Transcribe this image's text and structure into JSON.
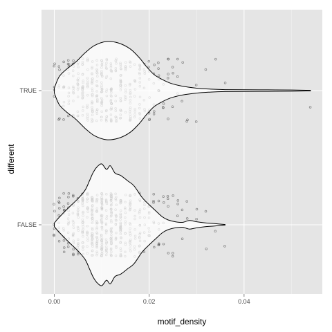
{
  "chart_data": {
    "type": "violin",
    "xlabel": "motif_density",
    "ylabel": "different",
    "xlim": [
      -0.0027,
      0.0565
    ],
    "x_ticks": [
      0.0,
      0.02,
      0.04
    ],
    "x_tick_labels": [
      "0.00",
      "0.02",
      "0.04"
    ],
    "categories": [
      "TRUE",
      "FALSE"
    ],
    "grid": true,
    "jittered_points": true,
    "colors": {
      "panel": "#e5e5e5",
      "grid": "#ffffff",
      "violin_fill": "#ffffff",
      "violin_stroke": "#000000",
      "points": "#333333"
    },
    "violins": [
      {
        "category": "TRUE",
        "min": 0.0,
        "max": 0.054,
        "profile": [
          [
            0.0,
            0.05
          ],
          [
            0.001,
            0.28
          ],
          [
            0.0025,
            0.43
          ],
          [
            0.0045,
            0.58
          ],
          [
            0.0065,
            0.77
          ],
          [
            0.0085,
            0.92
          ],
          [
            0.011,
            1.0
          ],
          [
            0.0135,
            0.97
          ],
          [
            0.016,
            0.85
          ],
          [
            0.018,
            0.66
          ],
          [
            0.0195,
            0.48
          ],
          [
            0.021,
            0.33
          ],
          [
            0.0225,
            0.24
          ],
          [
            0.0245,
            0.15
          ],
          [
            0.027,
            0.09
          ],
          [
            0.03,
            0.05
          ],
          [
            0.033,
            0.03
          ],
          [
            0.036,
            0.02
          ],
          [
            0.04,
            0.018
          ],
          [
            0.045,
            0.015
          ],
          [
            0.05,
            0.012
          ],
          [
            0.054,
            0.005
          ]
        ]
      },
      {
        "category": "FALSE",
        "min": 0.0,
        "max": 0.036,
        "profile": [
          [
            0.0,
            0.03
          ],
          [
            0.001,
            0.12
          ],
          [
            0.003,
            0.28
          ],
          [
            0.005,
            0.43
          ],
          [
            0.0065,
            0.57
          ],
          [
            0.0075,
            0.74
          ],
          [
            0.0082,
            0.86
          ],
          [
            0.009,
            0.95
          ],
          [
            0.01,
            1.0
          ],
          [
            0.011,
            0.91
          ],
          [
            0.0118,
            0.97
          ],
          [
            0.0128,
            0.85
          ],
          [
            0.014,
            0.81
          ],
          [
            0.0155,
            0.72
          ],
          [
            0.0168,
            0.64
          ],
          [
            0.0185,
            0.45
          ],
          [
            0.02,
            0.33
          ],
          [
            0.0215,
            0.22
          ],
          [
            0.0228,
            0.13
          ],
          [
            0.024,
            0.08
          ],
          [
            0.0255,
            0.05
          ],
          [
            0.027,
            0.04
          ],
          [
            0.0285,
            0.07
          ],
          [
            0.03,
            0.05
          ],
          [
            0.032,
            0.03
          ],
          [
            0.034,
            0.018
          ],
          [
            0.036,
            0.005
          ]
        ]
      }
    ],
    "point_columns": [
      {
        "x": 0.0,
        "TRUE": 5,
        "FALSE": 6
      },
      {
        "x": 0.001,
        "TRUE": 7,
        "FALSE": 9
      },
      {
        "x": 0.002,
        "TRUE": 9,
        "FALSE": 11
      },
      {
        "x": 0.003,
        "TRUE": 12,
        "FALSE": 14
      },
      {
        "x": 0.004,
        "TRUE": 14,
        "FALSE": 18
      },
      {
        "x": 0.005,
        "TRUE": 16,
        "FALSE": 22
      },
      {
        "x": 0.006,
        "TRUE": 24,
        "FALSE": 34
      },
      {
        "x": 0.007,
        "TRUE": 18,
        "FALSE": 22
      },
      {
        "x": 0.008,
        "TRUE": 28,
        "FALSE": 44
      },
      {
        "x": 0.009,
        "TRUE": 22,
        "FALSE": 30
      },
      {
        "x": 0.01,
        "TRUE": 32,
        "FALSE": 52
      },
      {
        "x": 0.011,
        "TRUE": 18,
        "FALSE": 24
      },
      {
        "x": 0.012,
        "TRUE": 30,
        "FALSE": 46
      },
      {
        "x": 0.013,
        "TRUE": 16,
        "FALSE": 20
      },
      {
        "x": 0.014,
        "TRUE": 26,
        "FALSE": 36
      },
      {
        "x": 0.015,
        "TRUE": 12,
        "FALSE": 14
      },
      {
        "x": 0.016,
        "TRUE": 20,
        "FALSE": 24
      },
      {
        "x": 0.017,
        "TRUE": 10,
        "FALSE": 10
      },
      {
        "x": 0.018,
        "TRUE": 16,
        "FALSE": 18
      },
      {
        "x": 0.019,
        "TRUE": 8,
        "FALSE": 8
      },
      {
        "x": 0.02,
        "TRUE": 10,
        "FALSE": 10
      },
      {
        "x": 0.021,
        "TRUE": 6,
        "FALSE": 6
      },
      {
        "x": 0.022,
        "TRUE": 7,
        "FALSE": 6
      },
      {
        "x": 0.023,
        "TRUE": 4,
        "FALSE": 4
      },
      {
        "x": 0.024,
        "TRUE": 5,
        "FALSE": 4
      },
      {
        "x": 0.025,
        "TRUE": 3,
        "FALSE": 3
      },
      {
        "x": 0.026,
        "TRUE": 3,
        "FALSE": 3
      },
      {
        "x": 0.027,
        "TRUE": 2,
        "FALSE": 2
      },
      {
        "x": 0.028,
        "TRUE": 2,
        "FALSE": 2
      },
      {
        "x": 0.03,
        "TRUE": 2,
        "FALSE": 2
      },
      {
        "x": 0.032,
        "TRUE": 1,
        "FALSE": 2
      },
      {
        "x": 0.034,
        "TRUE": 1,
        "FALSE": 1
      },
      {
        "x": 0.036,
        "TRUE": 1,
        "FALSE": 1
      },
      {
        "x": 0.054,
        "TRUE": 1,
        "FALSE": 0
      }
    ]
  }
}
